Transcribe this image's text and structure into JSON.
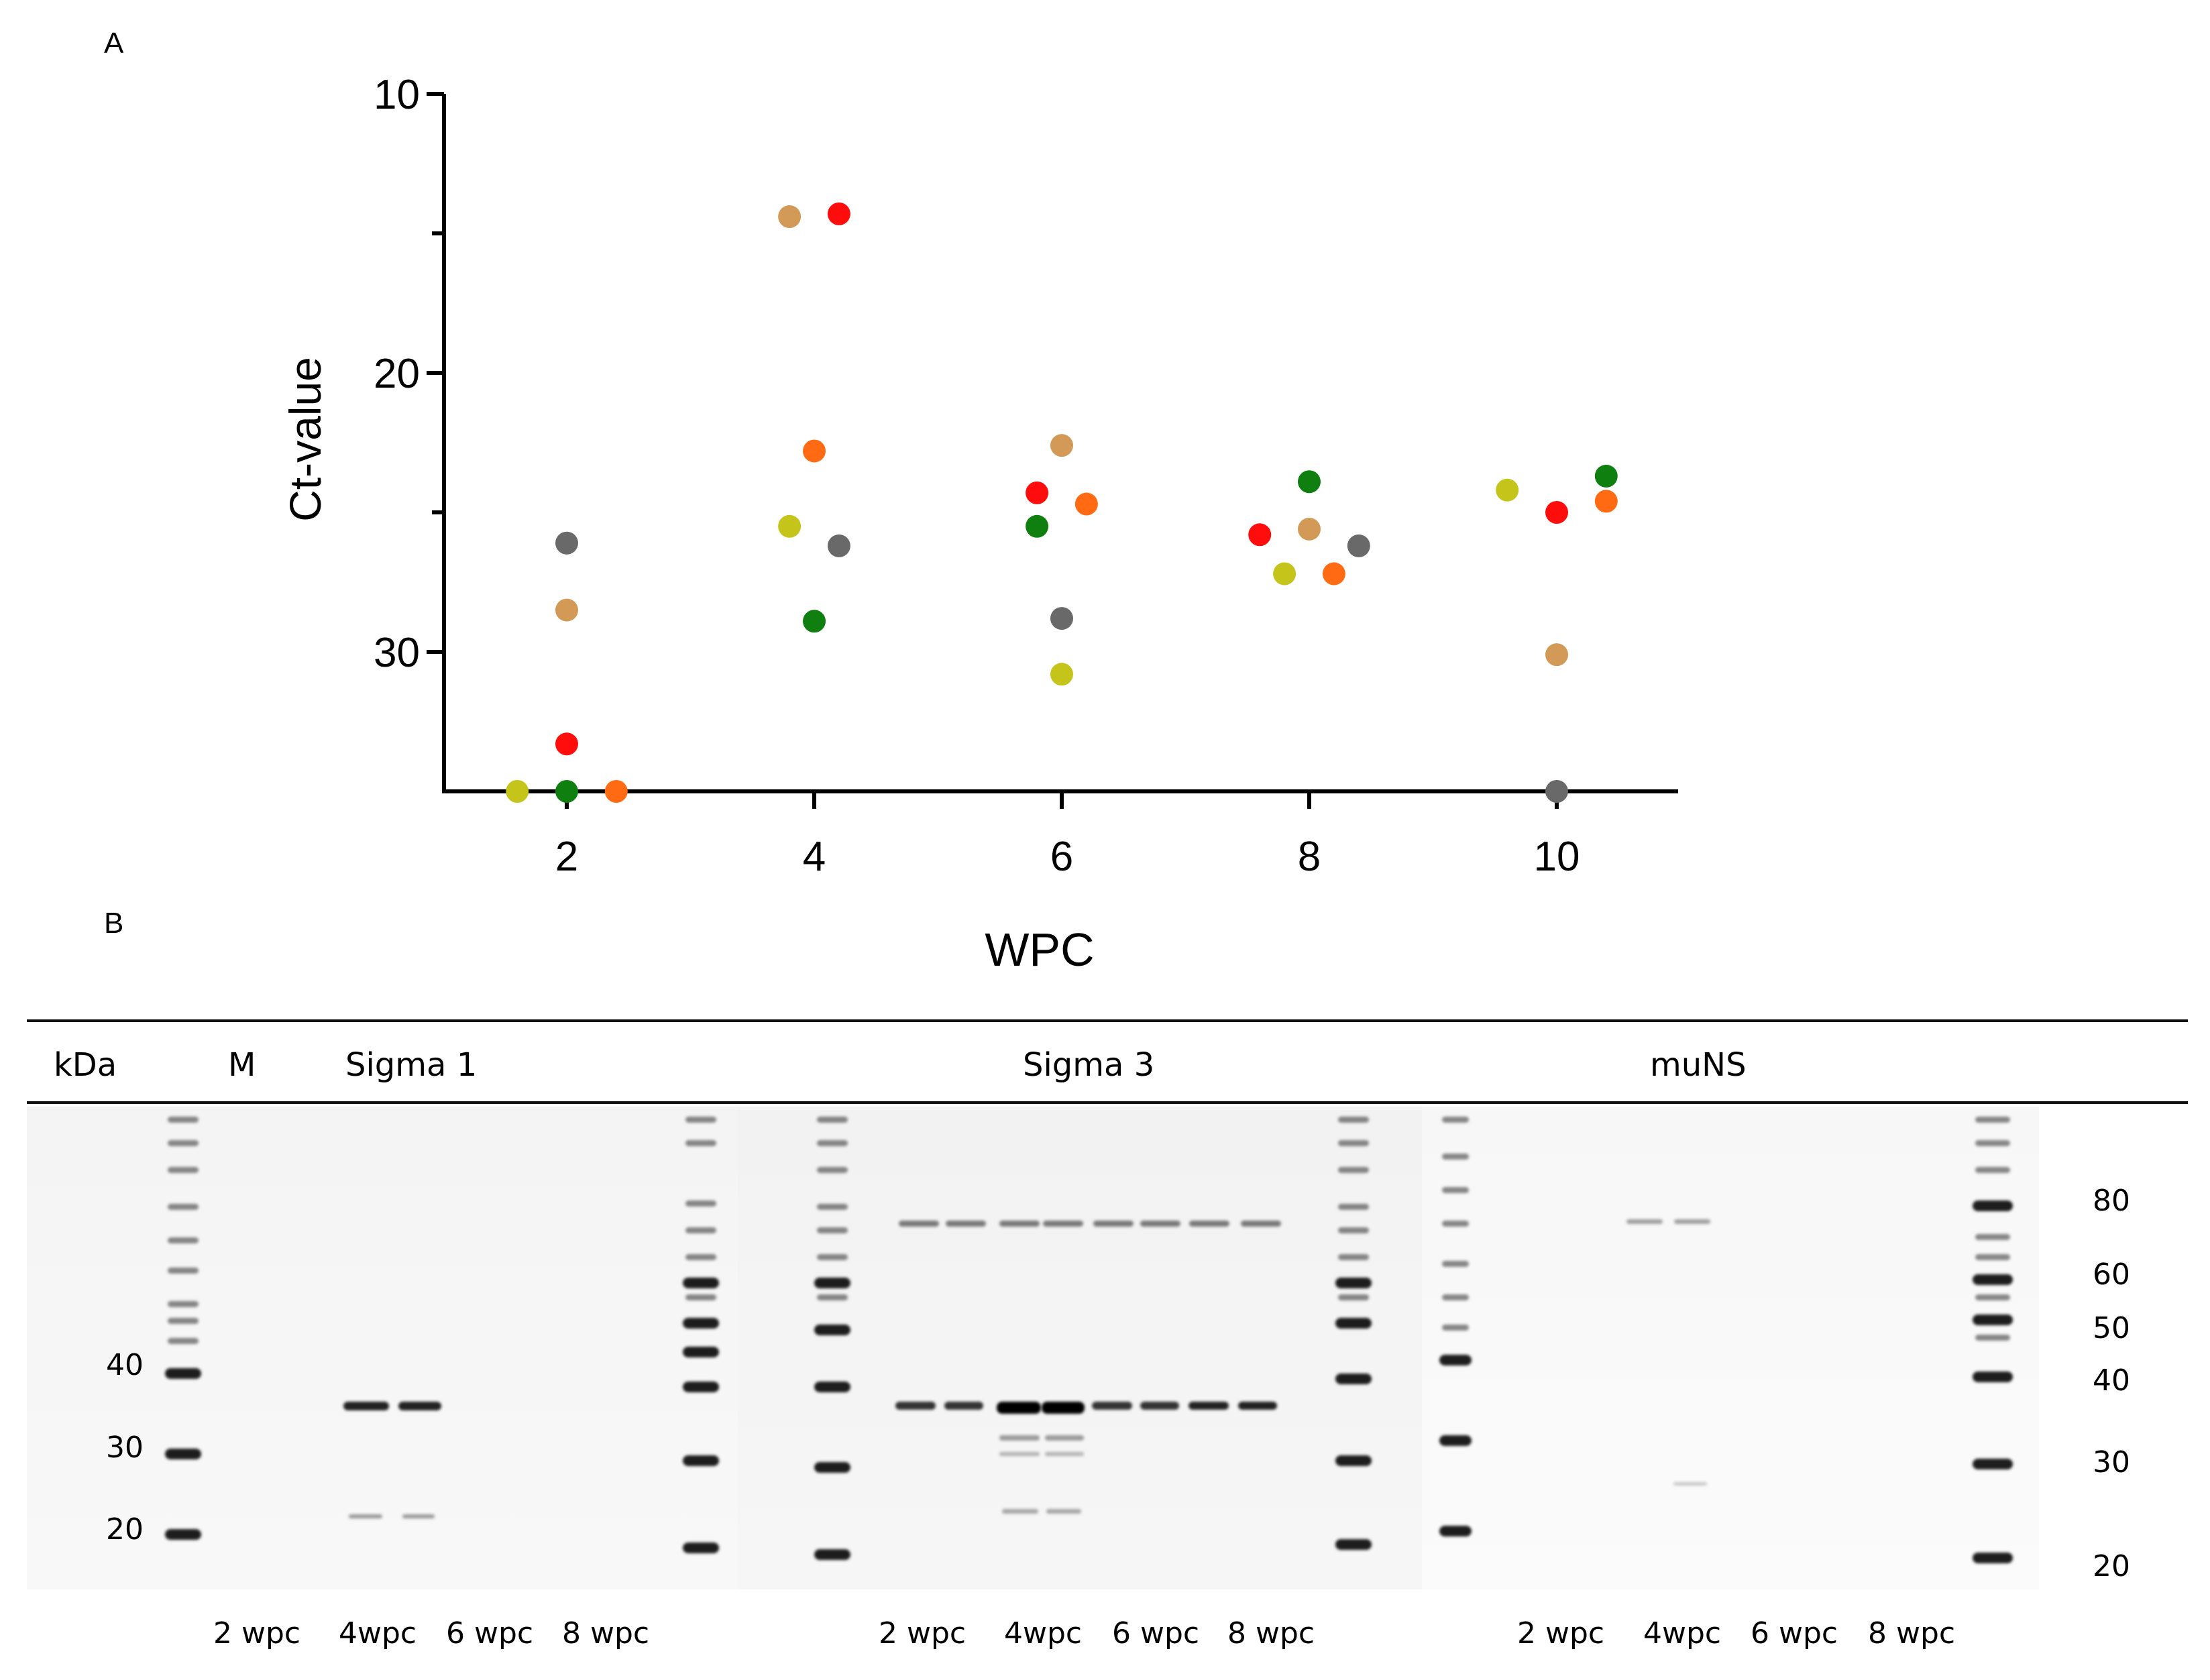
{
  "panels": {
    "a": "A",
    "b": "B"
  },
  "chart_data": {
    "type": "scatter",
    "xlabel": "WPC",
    "ylabel": "Ct-value",
    "x_ticks": [
      "2",
      "4",
      "6",
      "8",
      "10"
    ],
    "y_ticks": [
      "10",
      "20",
      "30"
    ],
    "ylim": [
      35,
      10
    ],
    "y_inverted": true,
    "series": [
      {
        "name": "grey",
        "color": "#696969",
        "points": [
          {
            "x": 2,
            "y": 26.1
          },
          {
            "x": 4,
            "y": 26.2
          },
          {
            "x": 6,
            "y": 28.8
          },
          {
            "x": 8,
            "y": 26.2
          },
          {
            "x": 10,
            "y": 35
          }
        ]
      },
      {
        "name": "tan",
        "color": "#d39957",
        "points": [
          {
            "x": 2,
            "y": 28.5
          },
          {
            "x": 4,
            "y": 14.4
          },
          {
            "x": 6,
            "y": 22.6
          },
          {
            "x": 8,
            "y": 25.6
          },
          {
            "x": 10,
            "y": 30.1
          }
        ]
      },
      {
        "name": "red",
        "color": "#ff0d0d",
        "points": [
          {
            "x": 2,
            "y": 33.3
          },
          {
            "x": 4,
            "y": 14.3
          },
          {
            "x": 6,
            "y": 24.3
          },
          {
            "x": 8,
            "y": 25.8
          },
          {
            "x": 10,
            "y": 25.0
          }
        ]
      },
      {
        "name": "yellow",
        "color": "#c4c41a",
        "points": [
          {
            "x": 2,
            "y": 35
          },
          {
            "x": 4,
            "y": 25.5
          },
          {
            "x": 6,
            "y": 30.8
          },
          {
            "x": 8,
            "y": 27.2
          },
          {
            "x": 10,
            "y": 24.2
          }
        ]
      },
      {
        "name": "green",
        "color": "#0f800f",
        "points": [
          {
            "x": 2,
            "y": 35
          },
          {
            "x": 4,
            "y": 28.9
          },
          {
            "x": 6,
            "y": 25.5
          },
          {
            "x": 8,
            "y": 23.9
          },
          {
            "x": 10,
            "y": 23.7
          }
        ]
      },
      {
        "name": "orange",
        "color": "#ff6a12",
        "points": [
          {
            "x": 2,
            "y": 35
          },
          {
            "x": 4,
            "y": 22.8
          },
          {
            "x": 6,
            "y": 24.7
          },
          {
            "x": 8,
            "y": 27.2
          },
          {
            "x": 10,
            "y": 24.6
          }
        ]
      }
    ],
    "x_offsets": {
      "grey": 0,
      "tan": 0,
      "red": 0,
      "yellow": -0.4,
      "green": 0,
      "orange": 0.4
    }
  },
  "blot": {
    "headers": {
      "kda": "kDa",
      "marker": "M",
      "sigma1": "Sigma 1",
      "sigma3": "Sigma 3",
      "muns": "muNS"
    },
    "left_kda": [
      "40",
      "30",
      "20"
    ],
    "right_kda": [
      "80",
      "60",
      "50",
      "40",
      "30",
      "20"
    ],
    "lane_labels": {
      "sigma1": [
        "2 wpc",
        "4wpc",
        "6 wpc",
        "8 wpc"
      ],
      "sigma3": [
        "2 wpc",
        "4wpc",
        "6 wpc",
        "8 wpc"
      ],
      "muns": [
        "2 wpc",
        "4wpc",
        "6 wpc",
        "8 wpc"
      ]
    }
  }
}
